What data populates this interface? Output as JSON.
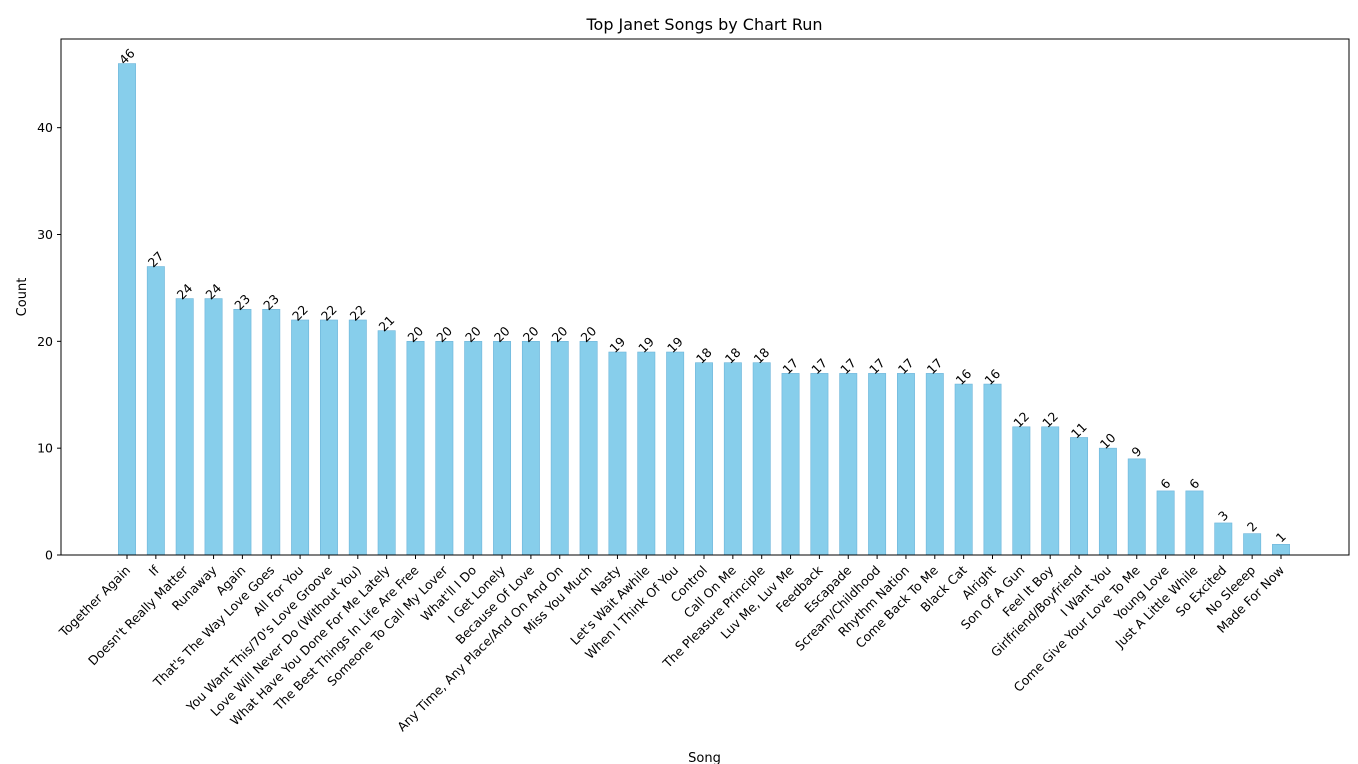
{
  "chart_data": {
    "type": "bar",
    "title": "Top Janet Songs by Chart Run",
    "xlabel": "Song",
    "ylabel": "Count",
    "ylim": [
      0,
      48.3
    ],
    "yticks": [
      0,
      10,
      20,
      30,
      40
    ],
    "grid": false,
    "bar_color": "#87ceeb",
    "bar_edge_color": "#6cb4d9",
    "categories": [
      "Together Again",
      "If",
      "Doesn't Really Matter",
      "Runaway",
      "Again",
      "That's The Way Love Goes",
      "All For You",
      "You Want This/70's Love Groove",
      "Love Will Never Do (Without You)",
      "What Have You Done For Me Lately",
      "The Best Things In Life Are Free",
      "Someone To Call My Lover",
      "What'll I Do",
      "I Get Lonely",
      "Because Of Love",
      "Any Time, Any Place/And On And On",
      "Miss You Much",
      "Nasty",
      "Let's Wait Awhile",
      "When I Think Of You",
      "Control",
      "Call On Me",
      "The Pleasure Principle",
      "Luv Me, Luv Me",
      "Feedback",
      "Escapade",
      "Scream/Childhood",
      "Rhythm Nation",
      "Come Back To Me",
      "Black Cat",
      "Alright",
      "Son Of A Gun",
      "Feel It Boy",
      "Girlfriend/Boyfriend",
      "I Want You",
      "Come Give Your Love To Me",
      "Young Love",
      "Just A Little While",
      "So Excited",
      "No Sleeep",
      "Made For Now"
    ],
    "values": [
      46,
      27,
      24,
      24,
      23,
      23,
      22,
      22,
      22,
      21,
      20,
      20,
      20,
      20,
      20,
      20,
      20,
      19,
      19,
      19,
      18,
      18,
      18,
      17,
      17,
      17,
      17,
      17,
      17,
      16,
      16,
      12,
      12,
      11,
      10,
      9,
      6,
      6,
      3,
      2,
      1
    ]
  }
}
